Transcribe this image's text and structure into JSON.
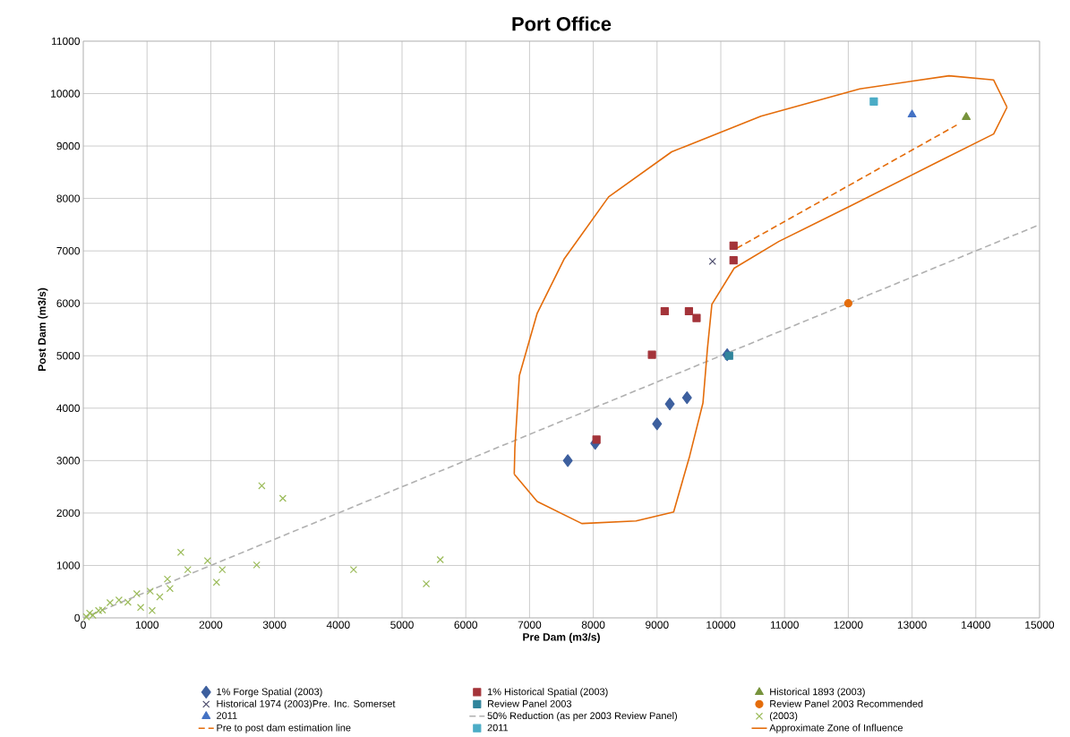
{
  "chart_data": {
    "type": "scatter",
    "title": "Port Office",
    "xlabel": "Pre Dam (m3/s)",
    "ylabel": "Post Dam (m3/s)",
    "xlim": [
      0,
      15000
    ],
    "xticks": [
      0,
      1000,
      2000,
      3000,
      4000,
      5000,
      6000,
      7000,
      8000,
      9000,
      10000,
      11000,
      12000,
      13000,
      14000,
      15000
    ],
    "ylim": [
      0,
      11000
    ],
    "yticks": [
      0,
      1000,
      2000,
      3000,
      4000,
      5000,
      6000,
      7000,
      8000,
      9000,
      10000,
      11000
    ],
    "grid": true,
    "legend": "bottom",
    "series": [
      {
        "name": "1% Forge Spatial (2003)",
        "marker": "diamond",
        "color": "#3d5f9e",
        "x": [
          7600,
          8030,
          9000,
          9200,
          9470,
          10100
        ],
        "values": [
          3000,
          3330,
          3700,
          4080,
          4200,
          5020
        ]
      },
      {
        "name": "1% Historical Spatial (2003)",
        "marker": "square",
        "color": "#a4343a",
        "x": [
          8050,
          8920,
          9120,
          9500,
          9620,
          10200,
          10200
        ],
        "values": [
          3400,
          5020,
          5850,
          5850,
          5720,
          6820,
          7100
        ]
      },
      {
        "name": "Historical 1893 (2003)",
        "type": "scatter",
        "marker": "triangle",
        "color": "#77933c",
        "x": [
          13850
        ],
        "values": [
          9550
        ]
      },
      {
        "name": "Historical 1974 (2003)Pre. Inc. Somerset",
        "type": "scatter",
        "marker": "cross",
        "color": "#4a4a6a",
        "x": [
          9870
        ],
        "values": [
          6800
        ]
      },
      {
        "name": "Review Panel 2003",
        "type": "scatter",
        "marker": "square",
        "color": "#31859c",
        "x": [
          10130
        ],
        "values": [
          5000
        ]
      },
      {
        "name": "Review Panel 2003 Recommended",
        "type": "scatter",
        "marker": "circle",
        "color": "#e46c0a",
        "x": [
          12000
        ],
        "values": [
          6000
        ]
      },
      {
        "name": "2011",
        "type": "scatter",
        "marker": "triangle",
        "color": "#4472c4",
        "x": [
          13000
        ],
        "values": [
          9600
        ]
      },
      {
        "name": "50% Reduction (as per 2003 Review Panel)",
        "type": "line",
        "line_style": "dashed",
        "color": "#b0b0b0",
        "x": [
          0,
          15000
        ],
        "values": [
          0,
          7500
        ]
      },
      {
        "name": "(2003)",
        "marker": "cross",
        "color": "#9bbb59",
        "x": [
          2800,
          3130,
          1530,
          1950,
          1640,
          2180,
          2090,
          2720,
          4240,
          5600,
          5380,
          1320,
          1360,
          1050,
          840,
          560,
          420,
          1080,
          240,
          100,
          50,
          150,
          300,
          700,
          900,
          1200
        ],
        "values": [
          2520,
          2280,
          1250,
          1090,
          920,
          920,
          680,
          1010,
          920,
          1110,
          650,
          740,
          560,
          510,
          460,
          340,
          290,
          140,
          140,
          90,
          20,
          50,
          150,
          300,
          200,
          400
        ]
      },
      {
        "name": "Pre to post dam estimation line",
        "type": "line",
        "line_style": "dashed",
        "color": "#e46c0a",
        "x": [
          10250,
          13700
        ],
        "values": [
          7050,
          9400
        ]
      },
      {
        "name": "2011",
        "type": "scatter",
        "marker": "square",
        "color": "#4bacc6",
        "x": [
          12400
        ],
        "values": [
          9850
        ]
      },
      {
        "name": "Approximate Zone of Influence",
        "type": "line",
        "line_style": "solid",
        "color": "#e46c0a",
        "x": [
          6760,
          7120,
          7820,
          8670,
          9260,
          9510,
          9720,
          9790,
          9860,
          10210,
          10910,
          12040,
          13440,
          14280,
          14490
        ],
        "values": [
          2740,
          2220,
          1800,
          1850,
          2020,
          3080,
          4100,
          5130,
          5980,
          6670,
          7180,
          7860,
          8720,
          9230,
          9740
        ]
      },
      {
        "type": "line",
        "line_style": "solid",
        "color": "#e46c0a",
        "x": [
          6760,
          6770,
          6840,
          7120,
          7540,
          8240,
          9230,
          10630,
          12180,
          13580,
          14280,
          14490
        ],
        "values": [
          2740,
          3250,
          4620,
          5810,
          6840,
          8030,
          8890,
          9570,
          10090,
          10340,
          10260,
          9740
        ]
      }
    ]
  }
}
